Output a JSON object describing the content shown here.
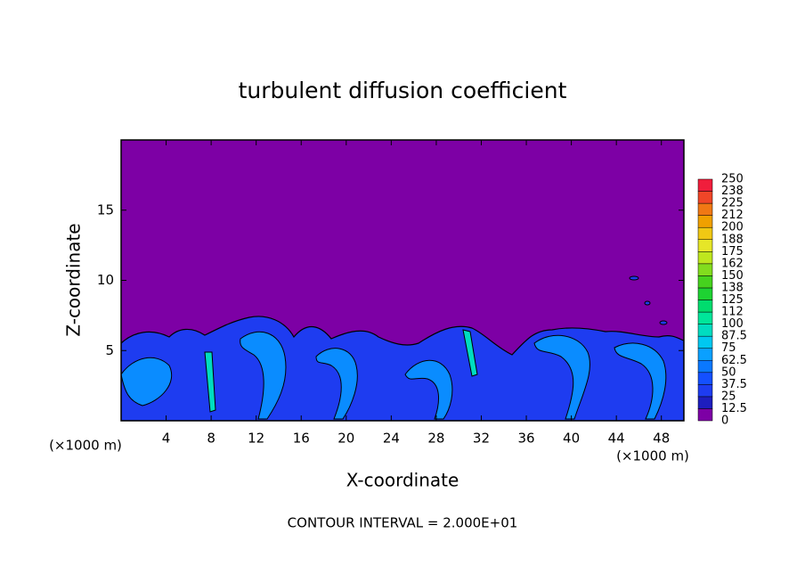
{
  "chart_data": {
    "type": "contour",
    "title": "turbulent diffusion coefficient",
    "xlabel": "X-coordinate",
    "ylabel": "Z-coordinate",
    "x_unit_label": "(×1000 m)",
    "annotation": "CONTOUR INTERVAL = 2.000E+01",
    "xlim": [
      0,
      50
    ],
    "ylim": [
      0,
      20
    ],
    "xticks": [
      4,
      8,
      12,
      16,
      20,
      24,
      28,
      32,
      36,
      40,
      44,
      48
    ],
    "yticks": [
      5,
      10,
      15
    ],
    "colorbar": {
      "levels": [
        0,
        12.5,
        25,
        37.5,
        50,
        62.5,
        75,
        87.5,
        100,
        112,
        125,
        138,
        150,
        162,
        175,
        188,
        200,
        212,
        225,
        238,
        250
      ],
      "colors": [
        "#7d00a5",
        "#1e1ebe",
        "#1e3cf0",
        "#1450ff",
        "#0a78ff",
        "#0aa0ff",
        "#00c8f0",
        "#00dcc0",
        "#00e69a",
        "#00dc6e",
        "#1ed232",
        "#46d21e",
        "#82dc1e",
        "#bee61e",
        "#e6e628",
        "#f0c814",
        "#f0a000",
        "#f07814",
        "#f04628",
        "#f01e3c",
        "#f08080"
      ]
    }
  }
}
